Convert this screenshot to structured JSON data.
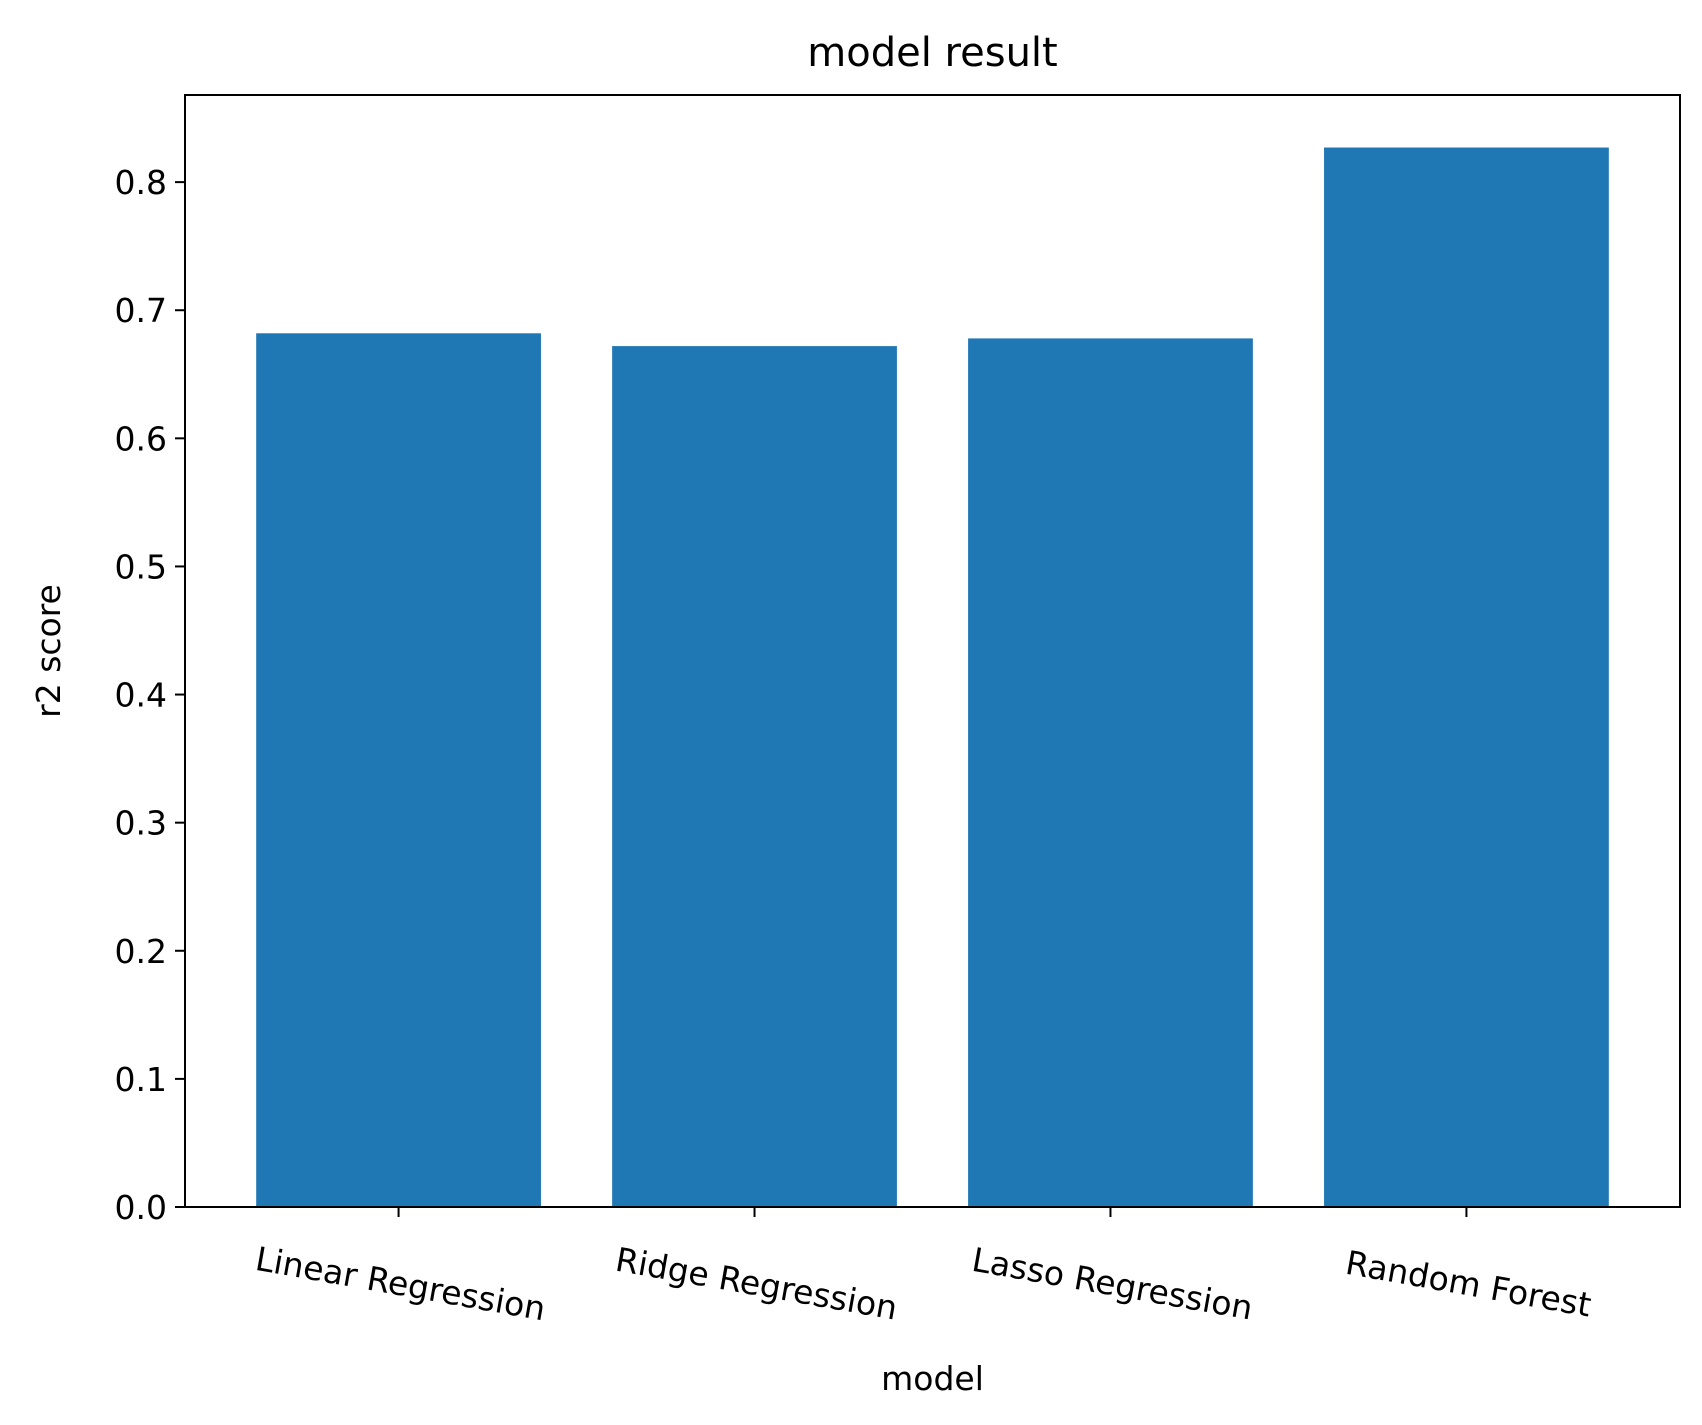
{
  "chart_data": {
    "type": "bar",
    "title": "model result",
    "xlabel": "model",
    "ylabel": "r2 score",
    "categories": [
      "Linear Regression",
      "Ridge Regression",
      "Lasso Regression",
      "Random Forest"
    ],
    "values": [
      0.682,
      0.672,
      0.678,
      0.827
    ],
    "ylim": [
      0,
      0.868
    ],
    "yticks": [
      "0.0",
      "0.1",
      "0.2",
      "0.3",
      "0.4",
      "0.5",
      "0.6",
      "0.7",
      "0.8"
    ],
    "grid": false,
    "legend": "none",
    "bar_color": "#1f77b4",
    "x_tick_rotation": "slanted"
  }
}
